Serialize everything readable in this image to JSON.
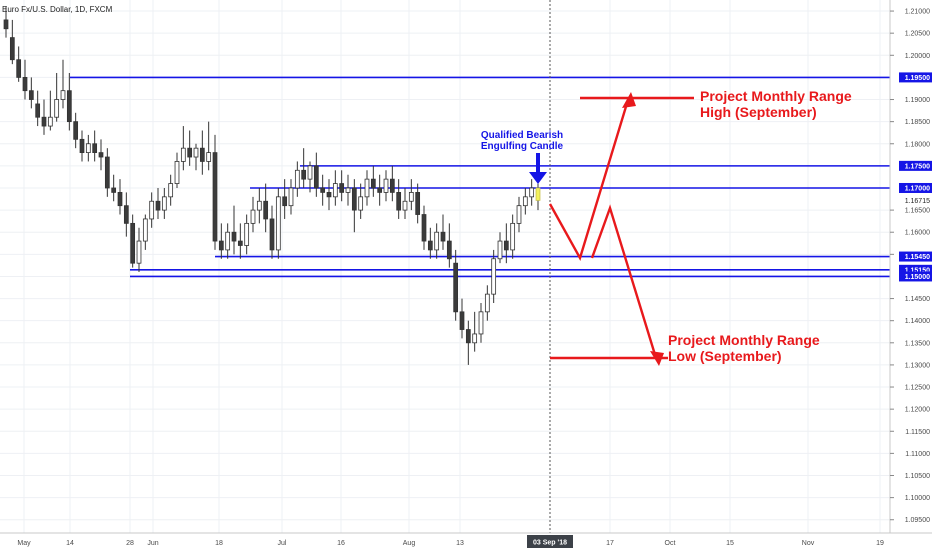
{
  "chart_data": {
    "type": "candlestick",
    "symbol_title": "Euro Fx/U.S. Dollar, 1D, FXCM",
    "y_range": [
      1.093,
      1.214
    ],
    "y_ticks": [
      "1.21000",
      "1.20500",
      "1.20000",
      "1.19500",
      "1.19000",
      "1.18500",
      "1.18000",
      "1.17500",
      "1.17000",
      "1.16500",
      "1.16000",
      "1.15500",
      "1.15000",
      "1.14500",
      "1.14000",
      "1.13500",
      "1.13000",
      "1.12500",
      "1.12000",
      "1.11500",
      "1.11000",
      "1.10500",
      "1.10000",
      "1.09500"
    ],
    "x_labels": [
      "May",
      "14",
      "28",
      "Jun",
      "18",
      "Jul",
      "16",
      "Aug",
      "13",
      "17",
      "Oct",
      "15",
      "Nov",
      "19"
    ],
    "crosshair_date": "03 Sep '18",
    "current_price": "1.16715",
    "levels": [
      {
        "value": 1.195,
        "label": "1.19500"
      },
      {
        "value": 1.175,
        "label": "1.17500"
      },
      {
        "value": 1.17,
        "label": "1.17000"
      },
      {
        "value": 1.1545,
        "label": "1.15450"
      },
      {
        "value": 1.1515,
        "label": "1.15150"
      },
      {
        "value": 1.15,
        "label": "1.15000"
      }
    ],
    "annotations": {
      "blue_note": [
        "Qualified Bearish",
        "Engulfing Candle"
      ],
      "high_note": [
        "Project Monthly Range",
        "High (September)"
      ],
      "low_note": [
        "Project Monthly Range",
        "Low (September)"
      ]
    },
    "candles": [
      [
        1.208,
        1.211,
        1.206,
        1.204
      ],
      [
        1.204,
        1.208,
        1.199,
        1.198
      ],
      [
        1.199,
        1.202,
        1.195,
        1.194
      ],
      [
        1.195,
        1.199,
        1.192,
        1.19
      ],
      [
        1.192,
        1.195,
        1.19,
        1.188
      ],
      [
        1.189,
        1.192,
        1.186,
        1.184
      ],
      [
        1.186,
        1.19,
        1.184,
        1.182
      ],
      [
        1.184,
        1.192,
        1.186,
        1.183
      ],
      [
        1.186,
        1.196,
        1.19,
        1.185
      ],
      [
        1.19,
        1.199,
        1.192,
        1.188
      ],
      [
        1.192,
        1.196,
        1.185,
        1.183
      ],
      [
        1.185,
        1.187,
        1.181,
        1.179
      ],
      [
        1.181,
        1.183,
        1.178,
        1.176
      ],
      [
        1.178,
        1.182,
        1.18,
        1.176
      ],
      [
        1.18,
        1.183,
        1.178,
        1.176
      ],
      [
        1.178,
        1.181,
        1.177,
        1.174
      ],
      [
        1.177,
        1.179,
        1.17,
        1.168
      ],
      [
        1.17,
        1.173,
        1.169,
        1.167
      ],
      [
        1.169,
        1.172,
        1.166,
        1.164
      ],
      [
        1.166,
        1.169,
        1.162,
        1.159
      ],
      [
        1.162,
        1.164,
        1.153,
        1.152
      ],
      [
        1.153,
        1.161,
        1.158,
        1.151
      ],
      [
        1.158,
        1.164,
        1.163,
        1.156
      ],
      [
        1.163,
        1.169,
        1.167,
        1.161
      ],
      [
        1.167,
        1.17,
        1.165,
        1.163
      ],
      [
        1.165,
        1.17,
        1.168,
        1.163
      ],
      [
        1.168,
        1.173,
        1.171,
        1.166
      ],
      [
        1.171,
        1.178,
        1.176,
        1.17
      ],
      [
        1.176,
        1.184,
        1.179,
        1.174
      ],
      [
        1.179,
        1.183,
        1.177,
        1.175
      ],
      [
        1.177,
        1.18,
        1.179,
        1.174
      ],
      [
        1.179,
        1.183,
        1.176,
        1.173
      ],
      [
        1.176,
        1.185,
        1.178,
        1.174
      ],
      [
        1.178,
        1.182,
        1.158,
        1.156
      ],
      [
        1.158,
        1.162,
        1.156,
        1.154
      ],
      [
        1.156,
        1.162,
        1.16,
        1.154
      ],
      [
        1.16,
        1.166,
        1.158,
        1.155
      ],
      [
        1.158,
        1.162,
        1.157,
        1.154
      ],
      [
        1.157,
        1.164,
        1.162,
        1.155
      ],
      [
        1.162,
        1.168,
        1.165,
        1.16
      ],
      [
        1.165,
        1.17,
        1.167,
        1.162
      ],
      [
        1.167,
        1.171,
        1.163,
        1.16
      ],
      [
        1.163,
        1.166,
        1.156,
        1.154
      ],
      [
        1.156,
        1.17,
        1.168,
        1.154
      ],
      [
        1.168,
        1.172,
        1.166,
        1.163
      ],
      [
        1.166,
        1.172,
        1.17,
        1.164
      ],
      [
        1.17,
        1.176,
        1.174,
        1.168
      ],
      [
        1.174,
        1.179,
        1.172,
        1.17
      ],
      [
        1.172,
        1.176,
        1.175,
        1.169
      ],
      [
        1.175,
        1.178,
        1.17,
        1.168
      ],
      [
        1.17,
        1.173,
        1.169,
        1.166
      ],
      [
        1.169,
        1.172,
        1.168,
        1.165
      ],
      [
        1.168,
        1.174,
        1.171,
        1.166
      ],
      [
        1.171,
        1.174,
        1.169,
        1.167
      ],
      [
        1.169,
        1.173,
        1.17,
        1.166
      ],
      [
        1.17,
        1.172,
        1.165,
        1.16
      ],
      [
        1.165,
        1.171,
        1.168,
        1.163
      ],
      [
        1.168,
        1.174,
        1.172,
        1.166
      ],
      [
        1.172,
        1.175,
        1.17,
        1.168
      ],
      [
        1.17,
        1.173,
        1.169,
        1.166
      ],
      [
        1.169,
        1.174,
        1.172,
        1.167
      ],
      [
        1.172,
        1.175,
        1.169,
        1.167
      ],
      [
        1.169,
        1.172,
        1.165,
        1.163
      ],
      [
        1.165,
        1.17,
        1.167,
        1.163
      ],
      [
        1.167,
        1.172,
        1.169,
        1.165
      ],
      [
        1.169,
        1.171,
        1.164,
        1.162
      ],
      [
        1.164,
        1.166,
        1.158,
        1.156
      ],
      [
        1.158,
        1.161,
        1.156,
        1.154
      ],
      [
        1.156,
        1.162,
        1.16,
        1.154
      ],
      [
        1.16,
        1.164,
        1.158,
        1.156
      ],
      [
        1.158,
        1.162,
        1.154,
        1.152
      ],
      [
        1.153,
        1.156,
        1.142,
        1.14
      ],
      [
        1.142,
        1.145,
        1.138,
        1.136
      ],
      [
        1.138,
        1.14,
        1.135,
        1.13
      ],
      [
        1.135,
        1.142,
        1.137,
        1.133
      ],
      [
        1.137,
        1.144,
        1.142,
        1.135
      ],
      [
        1.142,
        1.148,
        1.146,
        1.14
      ],
      [
        1.146,
        1.156,
        1.154,
        1.144
      ],
      [
        1.154,
        1.16,
        1.158,
        1.153
      ],
      [
        1.158,
        1.162,
        1.156,
        1.153
      ],
      [
        1.156,
        1.164,
        1.162,
        1.154
      ],
      [
        1.162,
        1.168,
        1.166,
        1.16
      ],
      [
        1.166,
        1.17,
        1.168,
        1.164
      ],
      [
        1.168,
        1.172,
        1.17,
        1.166
      ],
      [
        1.17,
        1.171,
        1.1672,
        1.165
      ]
    ]
  }
}
